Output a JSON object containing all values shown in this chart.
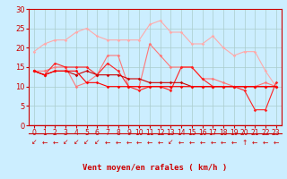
{
  "bg_color": "#cceeff",
  "grid_color": "#aacccc",
  "xlabel": "Vent moyen/en rafales ( km/h )",
  "xlim": [
    -0.5,
    23.5
  ],
  "ylim": [
    0,
    30
  ],
  "yticks": [
    0,
    5,
    10,
    15,
    20,
    25,
    30
  ],
  "xticks": [
    0,
    1,
    2,
    3,
    4,
    5,
    6,
    7,
    8,
    9,
    10,
    11,
    12,
    13,
    14,
    15,
    16,
    17,
    18,
    19,
    20,
    21,
    22,
    23
  ],
  "lines": [
    {
      "color": "#ffaaaa",
      "x": [
        0,
        1,
        2,
        3,
        4,
        5,
        6,
        7,
        8,
        9,
        10,
        11,
        12,
        13,
        14,
        15,
        16,
        17,
        18,
        19,
        20,
        21,
        22,
        23
      ],
      "y": [
        19,
        21,
        22,
        22,
        24,
        25,
        23,
        22,
        22,
        22,
        22,
        26,
        27,
        24,
        24,
        21,
        21,
        23,
        20,
        18,
        19,
        19,
        14,
        10
      ]
    },
    {
      "color": "#ff7777",
      "x": [
        0,
        1,
        2,
        3,
        4,
        5,
        6,
        7,
        8,
        9,
        10,
        11,
        12,
        13,
        14,
        15,
        16,
        17,
        18,
        19,
        20,
        21,
        22,
        23
      ],
      "y": [
        14,
        14,
        15,
        15,
        10,
        11,
        13,
        18,
        18,
        10,
        10,
        21,
        18,
        15,
        15,
        15,
        12,
        12,
        11,
        10,
        10,
        10,
        11,
        10
      ]
    },
    {
      "color": "#ff2222",
      "x": [
        0,
        1,
        2,
        3,
        4,
        5,
        6,
        7,
        8,
        9,
        10,
        11,
        12,
        13,
        14,
        15,
        16,
        17,
        18,
        19,
        20,
        21,
        22,
        23
      ],
      "y": [
        14,
        13,
        16,
        15,
        15,
        15,
        13,
        16,
        14,
        10,
        9,
        10,
        10,
        9,
        15,
        15,
        12,
        10,
        10,
        10,
        9,
        4,
        4,
        11
      ]
    },
    {
      "color": "#cc0000",
      "x": [
        0,
        1,
        2,
        3,
        4,
        5,
        6,
        7,
        8,
        9,
        10,
        11,
        12,
        13,
        14,
        15,
        16,
        17,
        18,
        19,
        20,
        21,
        22,
        23
      ],
      "y": [
        14,
        13,
        14,
        14,
        13,
        14,
        13,
        13,
        13,
        12,
        12,
        11,
        11,
        11,
        11,
        10,
        10,
        10,
        10,
        10,
        10,
        10,
        10,
        10
      ]
    },
    {
      "color": "#ff0000",
      "x": [
        0,
        1,
        2,
        3,
        4,
        5,
        6,
        7,
        8,
        9,
        10,
        11,
        12,
        13,
        14,
        15,
        16,
        17,
        18,
        19,
        20,
        21,
        22,
        23
      ],
      "y": [
        14,
        13,
        14,
        14,
        14,
        11,
        11,
        10,
        10,
        10,
        10,
        10,
        10,
        10,
        10,
        10,
        10,
        10,
        10,
        10,
        10,
        10,
        10,
        10
      ]
    }
  ],
  "arrows": [
    "↙",
    "←",
    "←",
    "↙",
    "↙",
    "↙",
    "↙",
    "←",
    "←",
    "←",
    "←",
    "←",
    "←",
    "↙",
    "←",
    "←",
    "←",
    "←",
    "←",
    "←",
    "↑",
    "←",
    "←",
    "←"
  ]
}
